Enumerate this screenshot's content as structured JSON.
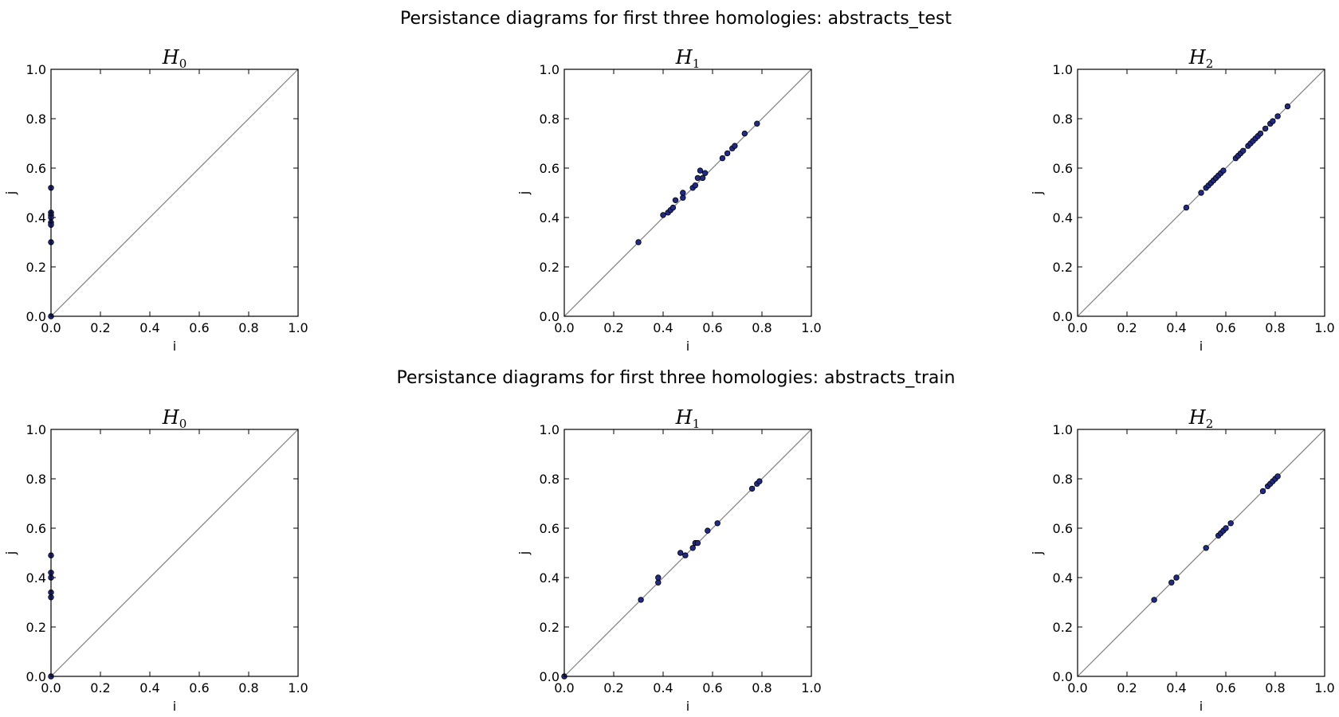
{
  "figure": {
    "row_titles": [
      "Persistance diagrams for first three homologies: abstracts_test",
      "Persistance diagrams for first three homologies: abstracts_train"
    ]
  },
  "colors": {
    "point_fill": "#1f2a8a",
    "point_edge": "#000000",
    "diagonal": "#808080",
    "axes": "#000000"
  },
  "chart_data": [
    {
      "type": "scatter",
      "row": 0,
      "col": 0,
      "title_base": "H",
      "title_sub": "0",
      "xlabel": "i",
      "ylabel": "j",
      "xlim": [
        0,
        1
      ],
      "ylim": [
        0,
        1
      ],
      "xticks": [
        "0.0",
        "0.2",
        "0.4",
        "0.6",
        "0.8",
        "1.0"
      ],
      "yticks": [
        "0.0",
        "0.2",
        "0.4",
        "0.6",
        "0.8",
        "1.0"
      ],
      "diagonal": true,
      "points": [
        [
          0,
          0
        ],
        [
          0,
          0.52
        ],
        [
          0,
          0.42
        ],
        [
          0,
          0.41
        ],
        [
          0,
          0.4
        ],
        [
          0,
          0.38
        ],
        [
          0,
          0.37
        ],
        [
          0,
          0.3
        ]
      ]
    },
    {
      "type": "scatter",
      "row": 0,
      "col": 1,
      "title_base": "H",
      "title_sub": "1",
      "xlabel": "i",
      "ylabel": "j",
      "xlim": [
        0,
        1
      ],
      "ylim": [
        0,
        1
      ],
      "xticks": [
        "0.0",
        "0.2",
        "0.4",
        "0.6",
        "0.8",
        "1.0"
      ],
      "yticks": [
        "0.0",
        "0.2",
        "0.4",
        "0.6",
        "0.8",
        "1.0"
      ],
      "diagonal": true,
      "points": [
        [
          0.3,
          0.3
        ],
        [
          0.4,
          0.41
        ],
        [
          0.42,
          0.42
        ],
        [
          0.43,
          0.43
        ],
        [
          0.44,
          0.44
        ],
        [
          0.45,
          0.47
        ],
        [
          0.48,
          0.48
        ],
        [
          0.48,
          0.5
        ],
        [
          0.52,
          0.52
        ],
        [
          0.53,
          0.53
        ],
        [
          0.54,
          0.56
        ],
        [
          0.55,
          0.59
        ],
        [
          0.56,
          0.56
        ],
        [
          0.57,
          0.58
        ],
        [
          0.64,
          0.64
        ],
        [
          0.66,
          0.66
        ],
        [
          0.68,
          0.68
        ],
        [
          0.69,
          0.69
        ],
        [
          0.73,
          0.74
        ],
        [
          0.78,
          0.78
        ]
      ]
    },
    {
      "type": "scatter",
      "row": 0,
      "col": 2,
      "title_base": "H",
      "title_sub": "2",
      "xlabel": "i",
      "ylabel": "j",
      "xlim": [
        0,
        1
      ],
      "ylim": [
        0,
        1
      ],
      "xticks": [
        "0.0",
        "0.2",
        "0.4",
        "0.6",
        "0.8",
        "1.0"
      ],
      "yticks": [
        "0.0",
        "0.2",
        "0.4",
        "0.6",
        "0.8",
        "1.0"
      ],
      "diagonal": true,
      "points": [
        [
          0.44,
          0.44
        ],
        [
          0.5,
          0.5
        ],
        [
          0.52,
          0.52
        ],
        [
          0.53,
          0.53
        ],
        [
          0.54,
          0.54
        ],
        [
          0.55,
          0.55
        ],
        [
          0.56,
          0.56
        ],
        [
          0.57,
          0.57
        ],
        [
          0.58,
          0.58
        ],
        [
          0.59,
          0.59
        ],
        [
          0.64,
          0.64
        ],
        [
          0.65,
          0.65
        ],
        [
          0.66,
          0.66
        ],
        [
          0.67,
          0.67
        ],
        [
          0.69,
          0.69
        ],
        [
          0.7,
          0.7
        ],
        [
          0.71,
          0.71
        ],
        [
          0.72,
          0.72
        ],
        [
          0.73,
          0.73
        ],
        [
          0.74,
          0.74
        ],
        [
          0.76,
          0.76
        ],
        [
          0.78,
          0.78
        ],
        [
          0.79,
          0.79
        ],
        [
          0.81,
          0.81
        ],
        [
          0.85,
          0.85
        ]
      ]
    },
    {
      "type": "scatter",
      "row": 1,
      "col": 0,
      "title_base": "H",
      "title_sub": "0",
      "xlabel": "i",
      "ylabel": "j",
      "xlim": [
        0,
        1
      ],
      "ylim": [
        0,
        1
      ],
      "xticks": [
        "0.0",
        "0.2",
        "0.4",
        "0.6",
        "0.8",
        "1.0"
      ],
      "yticks": [
        "0.0",
        "0.2",
        "0.4",
        "0.6",
        "0.8",
        "1.0"
      ],
      "diagonal": true,
      "points": [
        [
          0,
          0
        ],
        [
          0,
          0.49
        ],
        [
          0,
          0.42
        ],
        [
          0,
          0.4
        ],
        [
          0,
          0.34
        ],
        [
          0,
          0.32
        ]
      ]
    },
    {
      "type": "scatter",
      "row": 1,
      "col": 1,
      "title_base": "H",
      "title_sub": "1",
      "xlabel": "i",
      "ylabel": "j",
      "xlim": [
        0,
        1
      ],
      "ylim": [
        0,
        1
      ],
      "xticks": [
        "0.0",
        "0.2",
        "0.4",
        "0.6",
        "0.8",
        "1.0"
      ],
      "yticks": [
        "0.0",
        "0.2",
        "0.4",
        "0.6",
        "0.8",
        "1.0"
      ],
      "diagonal": true,
      "points": [
        [
          0,
          0
        ],
        [
          0.31,
          0.31
        ],
        [
          0.38,
          0.38
        ],
        [
          0.38,
          0.4
        ],
        [
          0.47,
          0.5
        ],
        [
          0.49,
          0.49
        ],
        [
          0.52,
          0.52
        ],
        [
          0.53,
          0.54
        ],
        [
          0.54,
          0.54
        ],
        [
          0.58,
          0.59
        ],
        [
          0.62,
          0.62
        ],
        [
          0.76,
          0.76
        ],
        [
          0.78,
          0.78
        ],
        [
          0.79,
          0.79
        ]
      ]
    },
    {
      "type": "scatter",
      "row": 1,
      "col": 2,
      "title_base": "H",
      "title_sub": "2",
      "xlabel": "i",
      "ylabel": "j",
      "xlim": [
        0,
        1
      ],
      "ylim": [
        0,
        1
      ],
      "xticks": [
        "0.0",
        "0.2",
        "0.4",
        "0.6",
        "0.8",
        "1.0"
      ],
      "yticks": [
        "0.0",
        "0.2",
        "0.4",
        "0.6",
        "0.8",
        "1.0"
      ],
      "diagonal": true,
      "points": [
        [
          0.31,
          0.31
        ],
        [
          0.38,
          0.38
        ],
        [
          0.4,
          0.4
        ],
        [
          0.52,
          0.52
        ],
        [
          0.57,
          0.57
        ],
        [
          0.58,
          0.58
        ],
        [
          0.59,
          0.59
        ],
        [
          0.6,
          0.6
        ],
        [
          0.62,
          0.62
        ],
        [
          0.75,
          0.75
        ],
        [
          0.77,
          0.77
        ],
        [
          0.78,
          0.78
        ],
        [
          0.79,
          0.79
        ],
        [
          0.8,
          0.8
        ],
        [
          0.81,
          0.81
        ]
      ]
    }
  ]
}
